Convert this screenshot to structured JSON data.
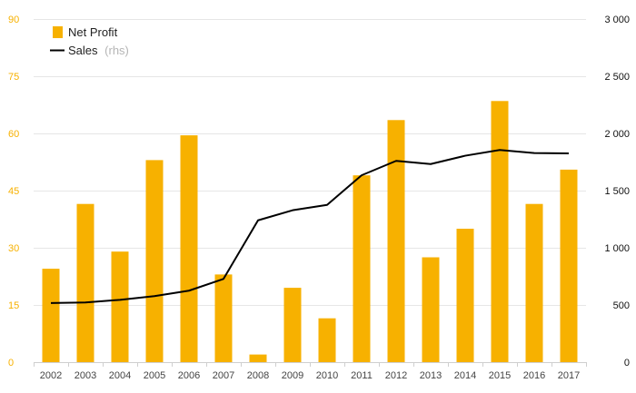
{
  "colors": {
    "bar": "#F7B100",
    "line": "#000000",
    "grid": "#e6e6e6",
    "left_axis_text": "#F7B100",
    "right_axis_text": "#111111"
  },
  "legend": {
    "net_profit": "Net Profit",
    "sales": "Sales",
    "sales_suffix": "(rhs)"
  },
  "chart_data": {
    "type": "bar",
    "categories": [
      "2002",
      "2003",
      "2004",
      "2005",
      "2006",
      "2007",
      "2008",
      "2009",
      "2010",
      "2011",
      "2012",
      "2013",
      "2014",
      "2015",
      "2016",
      "2017"
    ],
    "series": [
      {
        "name": "Net Profit",
        "type": "bar",
        "axis": "left",
        "values": [
          24.5,
          41.5,
          29,
          53,
          59.5,
          23,
          2,
          19.5,
          11.5,
          49,
          63.5,
          27.5,
          35,
          68.5,
          41.5,
          50.5
        ]
      },
      {
        "name": "Sales",
        "type": "line",
        "axis": "right",
        "values": [
          517,
          522,
          545,
          577,
          625,
          728,
          1240,
          1328,
          1375,
          1634,
          1760,
          1732,
          1805,
          1855,
          1828,
          1825
        ]
      }
    ],
    "left_axis": {
      "ylim": [
        0,
        90
      ],
      "ticks": [
        "0",
        "15",
        "30",
        "45",
        "60",
        "75",
        "90"
      ],
      "tick_values": [
        0,
        15,
        30,
        45,
        60,
        75,
        90
      ]
    },
    "right_axis": {
      "ylim": [
        0,
        3000
      ],
      "ticks": [
        "0",
        "500",
        "1 000",
        "1 500",
        "2 000",
        "2 500",
        "3 000"
      ],
      "tick_values": [
        0,
        500,
        1000,
        1500,
        2000,
        2500,
        3000
      ]
    },
    "grid": true,
    "legend_position": "top-left"
  }
}
